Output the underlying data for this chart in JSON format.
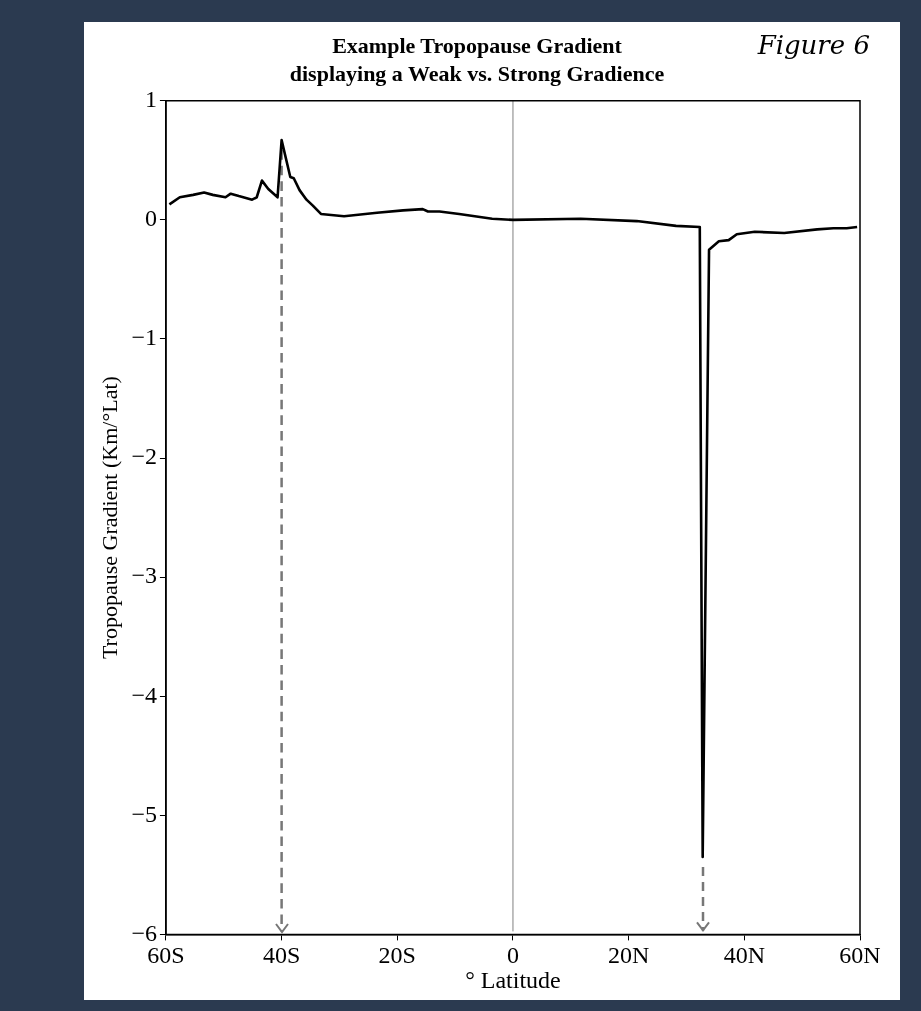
{
  "chart_data": {
    "type": "line",
    "title": "Example Tropopause Gradient",
    "subtitle": "displaying a Weak vs. Strong Gradience",
    "xlabel": "° Latitude",
    "ylabel": "Tropopause Gradient (Km/°Lat)",
    "annotations": [
      "Figure 6"
    ],
    "series": [
      {
        "color": "#000000",
        "x": [
          -59.4,
          -57.6,
          -55.3,
          -53.4,
          -51.9,
          -49.7,
          -48.8,
          -47.4,
          -45.1,
          -44.3,
          -43.4,
          -42.3,
          -40.7,
          -40.0,
          -38.5,
          -37.9,
          -36.9,
          -35.7,
          -34.6,
          -33.2,
          -29.2,
          -23.5,
          -19.0,
          -15.6,
          -14.7,
          -12.7,
          -9.3,
          -3.6,
          0,
          11.7,
          21.4,
          28.2,
          32.3,
          32.8,
          33.9,
          35.6,
          37.3,
          38.7,
          41.8,
          46.9,
          52.6,
          55.4,
          57.7,
          59.5
        ],
        "values": [
          0.13,
          0.19,
          0.21,
          0.23,
          0.21,
          0.19,
          0.22,
          0.2,
          0.17,
          0.19,
          0.33,
          0.26,
          0.19,
          0.67,
          0.36,
          0.35,
          0.25,
          0.17,
          0.12,
          0.05,
          0.03,
          0.06,
          0.08,
          0.09,
          0.07,
          0.07,
          0.05,
          0.01,
          0,
          0.01,
          -0.01,
          -0.05,
          -0.06,
          -5.35,
          -0.25,
          -0.18,
          -0.17,
          -0.12,
          -0.1,
          -0.11,
          -0.08,
          -0.07,
          -0.07,
          -0.06
        ]
      }
    ],
    "xlim": [
      -60,
      60
    ],
    "xticks": [
      {
        "value": -60,
        "label": "60S"
      },
      {
        "value": -40,
        "label": "40S"
      },
      {
        "value": -20,
        "label": "20S"
      },
      0,
      {
        "value": 20,
        "label": "20N"
      },
      {
        "value": 40,
        "label": "40N"
      },
      {
        "value": 60,
        "label": "60N"
      }
    ],
    "ylim": [
      -6,
      1
    ],
    "yticks": [
      -6,
      -5,
      -4,
      -3,
      -2,
      -1,
      0,
      1
    ],
    "ref_lines": [
      {
        "axis": "x",
        "value": 0,
        "color": "#808080"
      },
      {
        "axis": "x",
        "value": -40.0,
        "color": "#777777",
        "line_style": "dashed"
      }
    ],
    "grid": false,
    "legend": false,
    "marker": "none",
    "line_style": "solid"
  }
}
